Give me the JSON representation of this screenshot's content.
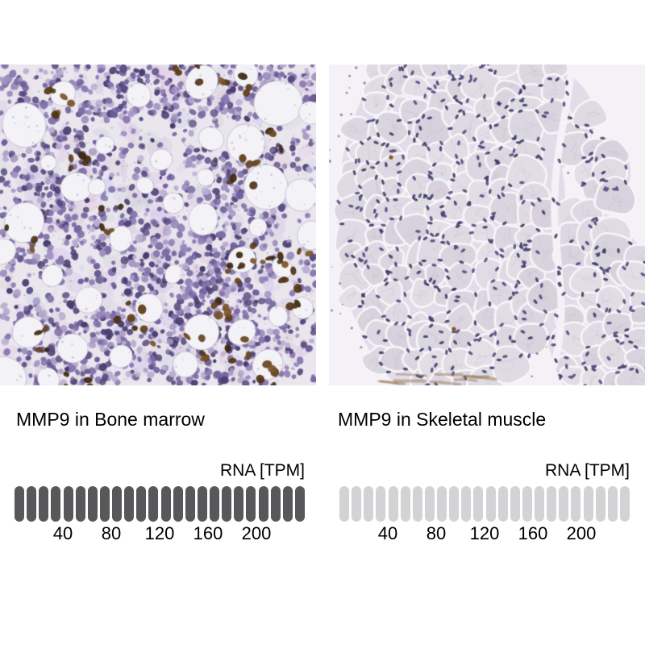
{
  "colors": {
    "filled_segment": "#58585a",
    "empty_segment": "#d3d3d5",
    "text": "#000000",
    "page_background": "#ffffff"
  },
  "panels": [
    {
      "title": "MMP9 in Bone marrow",
      "tissue": "bone_marrow",
      "rna_unit_label": "RNA [TPM]",
      "gauge": {
        "segments_total": 24,
        "segments_filled": 24,
        "axis_ticks": [
          "40",
          "80",
          "120",
          "160",
          "200"
        ]
      }
    },
    {
      "title": "MMP9 in Skeletal muscle",
      "tissue": "skeletal_muscle",
      "rna_unit_label": "RNA [TPM]",
      "gauge": {
        "segments_total": 24,
        "segments_filled": 0,
        "axis_ticks": [
          "40",
          "80",
          "120",
          "160",
          "200"
        ]
      }
    }
  ],
  "chart_data": [
    {
      "type": "bar",
      "title": "MMP9 in Bone marrow",
      "ylabel": "RNA [TPM]",
      "segments_total": 24,
      "segments_filled": 24,
      "tick_labels": [
        40,
        80,
        120,
        160,
        200
      ],
      "axis_range": [
        0,
        240
      ],
      "segment_value_tpm": 10,
      "legend_position": "none",
      "grid": false
    },
    {
      "type": "bar",
      "title": "MMP9 in Skeletal muscle",
      "ylabel": "RNA [TPM]",
      "segments_total": 24,
      "segments_filled": 0,
      "tick_labels": [
        40,
        80,
        120,
        160,
        200
      ],
      "axis_range": [
        0,
        240
      ],
      "segment_value_tpm": 10,
      "legend_position": "none",
      "grid": false
    }
  ]
}
